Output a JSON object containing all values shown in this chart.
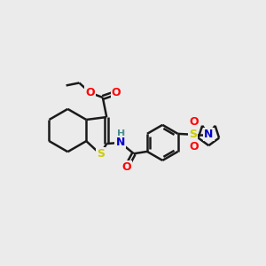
{
  "background_color": "#ebebeb",
  "line_color": "#1a1a1a",
  "bond_width": 1.8,
  "atom_colors": {
    "O": "#ff0000",
    "N": "#0000cc",
    "S": "#cccc00",
    "H": "#4a9090",
    "C": "#1a1a1a"
  },
  "figsize": [
    3.0,
    3.0
  ],
  "dpi": 100
}
